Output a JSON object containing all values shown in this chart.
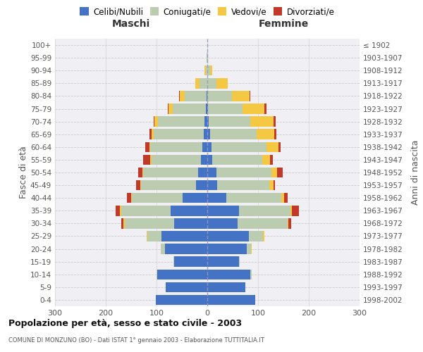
{
  "age_groups": [
    "0-4",
    "5-9",
    "10-14",
    "15-19",
    "20-24",
    "25-29",
    "30-34",
    "35-39",
    "40-44",
    "45-49",
    "50-54",
    "55-59",
    "60-64",
    "65-69",
    "70-74",
    "75-79",
    "80-84",
    "85-89",
    "90-94",
    "95-99",
    "100+"
  ],
  "birth_years": [
    "1998-2002",
    "1993-1997",
    "1988-1992",
    "1983-1987",
    "1978-1982",
    "1973-1977",
    "1968-1972",
    "1963-1967",
    "1958-1962",
    "1953-1957",
    "1948-1952",
    "1943-1947",
    "1938-1942",
    "1933-1937",
    "1928-1932",
    "1923-1927",
    "1918-1922",
    "1913-1917",
    "1908-1912",
    "1903-1907",
    "≤ 1902"
  ],
  "male_celibi": [
    102,
    82,
    98,
    65,
    83,
    90,
    65,
    72,
    48,
    22,
    18,
    12,
    10,
    7,
    5,
    3,
    2,
    0,
    0,
    0,
    0
  ],
  "male_coniugati": [
    0,
    0,
    2,
    2,
    8,
    28,
    98,
    98,
    100,
    108,
    108,
    98,
    102,
    98,
    92,
    65,
    42,
    15,
    3,
    1,
    0
  ],
  "male_vedovi": [
    0,
    0,
    0,
    0,
    1,
    2,
    2,
    2,
    2,
    2,
    2,
    2,
    2,
    5,
    7,
    8,
    10,
    8,
    2,
    1,
    0
  ],
  "male_divorziati": [
    0,
    0,
    0,
    0,
    0,
    0,
    4,
    8,
    8,
    8,
    8,
    14,
    8,
    4,
    2,
    2,
    2,
    0,
    0,
    0,
    0
  ],
  "female_nubili": [
    95,
    75,
    85,
    62,
    78,
    82,
    60,
    62,
    38,
    20,
    18,
    10,
    8,
    5,
    3,
    2,
    0,
    0,
    0,
    0,
    0
  ],
  "female_coniugate": [
    0,
    0,
    2,
    2,
    8,
    28,
    98,
    102,
    108,
    102,
    108,
    98,
    108,
    92,
    82,
    68,
    48,
    18,
    5,
    1,
    0
  ],
  "female_vedove": [
    0,
    0,
    0,
    0,
    2,
    2,
    2,
    2,
    5,
    8,
    12,
    16,
    24,
    35,
    45,
    42,
    35,
    22,
    5,
    1,
    0
  ],
  "female_divorziate": [
    0,
    0,
    0,
    0,
    0,
    0,
    5,
    14,
    8,
    4,
    10,
    5,
    5,
    4,
    5,
    4,
    2,
    0,
    0,
    0,
    0
  ],
  "colors_celibi": "#4472C4",
  "colors_coniugati": "#BCCCB0",
  "colors_vedovi": "#F4C842",
  "colors_divorziati": "#C0392B",
  "bg_color": "#FFFFFF",
  "plot_bg": "#F0F0F4",
  "xlim": 300,
  "title": "Popolazione per età, sesso e stato civile - 2003",
  "subtitle": "COMUNE DI MONZUNO (BO) - Dati ISTAT 1° gennaio 2003 - Elaborazione TUTTITALIA.IT",
  "ylabel_left": "Fasce di età",
  "ylabel_right": "Anni di nascita",
  "label_maschi": "Maschi",
  "label_femmine": "Femmine",
  "legend_labels": [
    "Celibi/Nubili",
    "Coniugati/e",
    "Vedovi/e",
    "Divorziati/e"
  ]
}
